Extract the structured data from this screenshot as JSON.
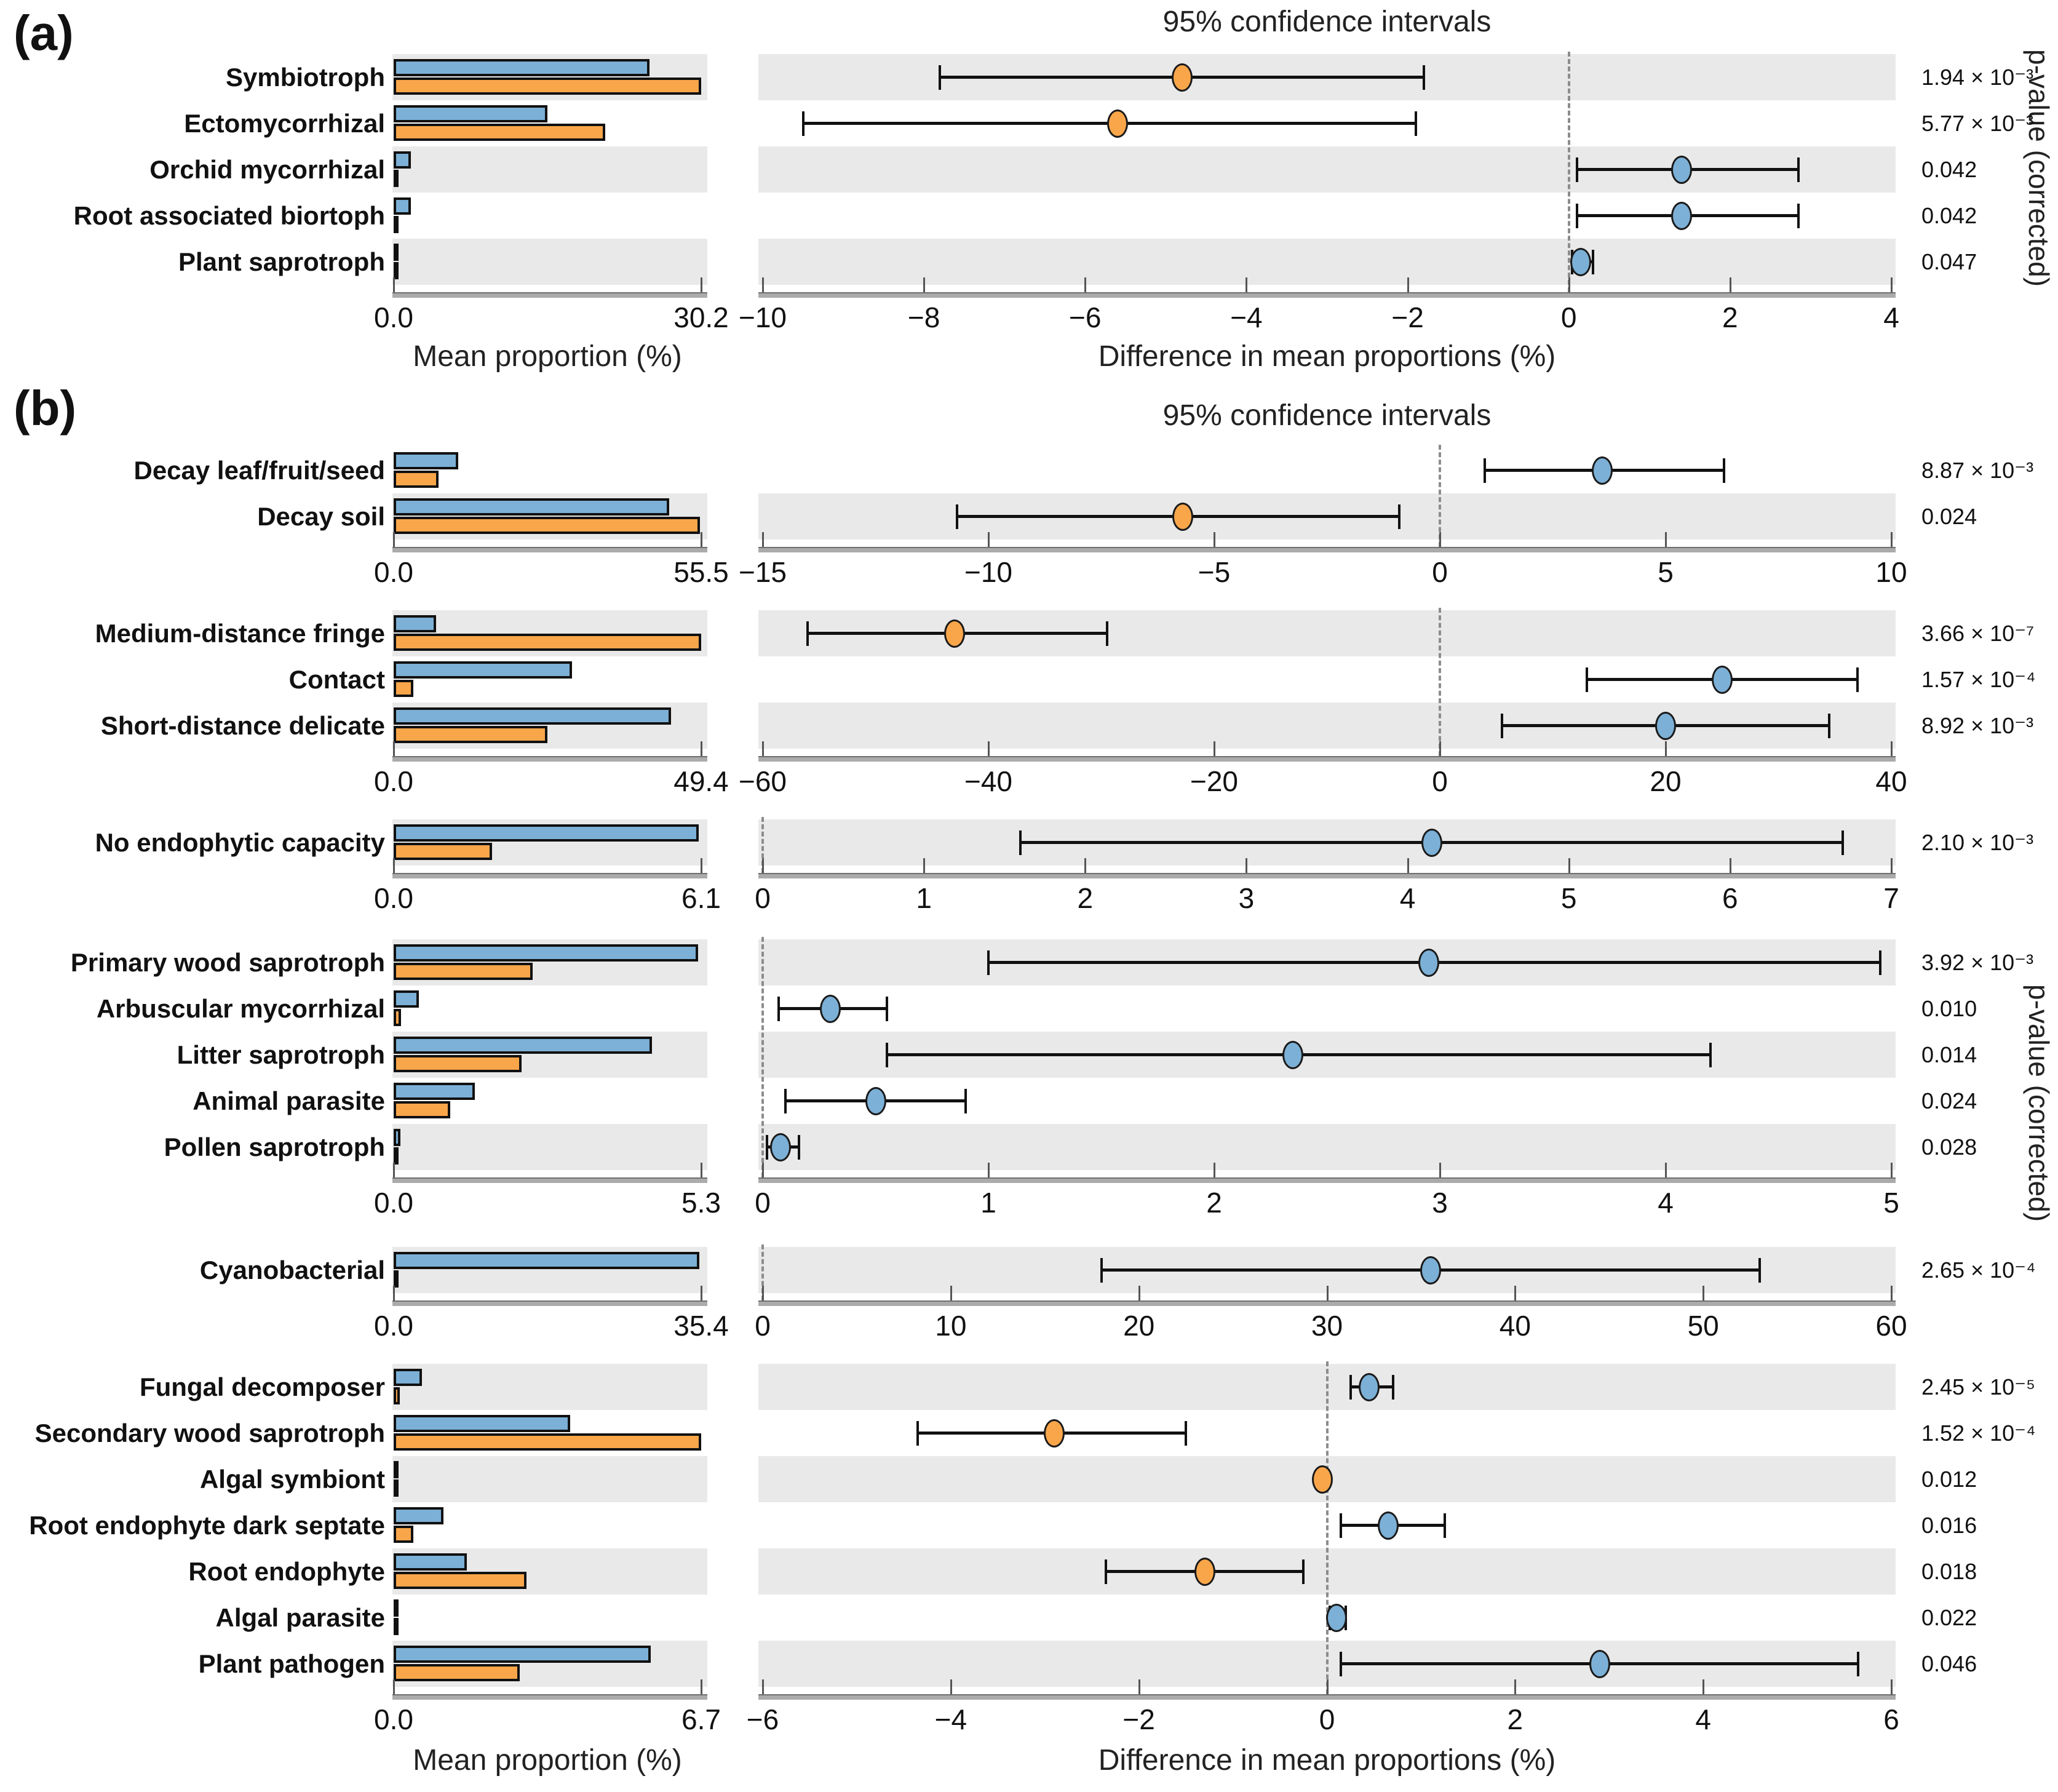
{
  "figure": {
    "panel_a_label": "(a)",
    "panel_b_label": "(b)",
    "ci_title": "95% confidence intervals",
    "mean_axis_title": "Mean proportion (%)",
    "diff_axis_title": "Difference in mean proportions (%)",
    "pvalue_axis_title": "p-value (corrected)"
  },
  "colors": {
    "blue": "#7cb0d6",
    "orange": "#f9a64b",
    "stripe": "#e9e9e9",
    "bar_border": "#111111",
    "axis_line": "#ababab",
    "tick": "#555555",
    "zero_line": "#8c8c8c",
    "text": "#111111"
  },
  "chart_data": [
    {
      "id": "a1",
      "panel": "a",
      "type": "extended-error-bar",
      "mean_axis": {
        "min": 0,
        "max": 30.2,
        "tick_labels": [
          "0.0",
          "30.2"
        ]
      },
      "diff_axis": {
        "min": -10,
        "max": 4,
        "ticks": [
          -10,
          -8,
          -6,
          -4,
          -2,
          0,
          2,
          4
        ],
        "tick_labels": [
          "−10",
          "−8",
          "−6",
          "−4",
          "−2",
          "0",
          "2",
          "4"
        ]
      },
      "rows": [
        {
          "label": "Symbiotroph",
          "mean_blue": 25.1,
          "mean_orange": 30.2,
          "diff_mean": -4.8,
          "ci_low": -7.8,
          "ci_high": -1.8,
          "dot_color": "orange",
          "p_value": "1.94 × 10⁻³",
          "striped": true
        },
        {
          "label": "Ectomycorrhizal",
          "mean_blue": 15.1,
          "mean_orange": 20.8,
          "diff_mean": -5.6,
          "ci_low": -9.5,
          "ci_high": -1.9,
          "dot_color": "orange",
          "p_value": "5.77 × 10⁻³",
          "striped": false
        },
        {
          "label": "Orchid mycorrhizal",
          "mean_blue": 1.7,
          "mean_orange": 0.35,
          "diff_mean": 1.4,
          "ci_low": 0.1,
          "ci_high": 2.85,
          "dot_color": "blue",
          "p_value": "0.042",
          "striped": true
        },
        {
          "label": "Root associated biortoph",
          "mean_blue": 1.7,
          "mean_orange": 0.35,
          "diff_mean": 1.4,
          "ci_low": 0.1,
          "ci_high": 2.85,
          "dot_color": "blue",
          "p_value": "0.042",
          "striped": false
        },
        {
          "label": "Plant saprotroph",
          "mean_blue": 0.2,
          "mean_orange": 0.1,
          "diff_mean": 0.15,
          "ci_low": 0.04,
          "ci_high": 0.3,
          "dot_color": "blue",
          "p_value": "0.047",
          "striped": true
        }
      ]
    },
    {
      "id": "b1",
      "panel": "b",
      "type": "extended-error-bar",
      "mean_axis": {
        "min": 0,
        "max": 55.5,
        "tick_labels": [
          "0.0",
          "55.5"
        ]
      },
      "diff_axis": {
        "min": -15,
        "max": 10,
        "ticks": [
          -15,
          -10,
          -5,
          0,
          5,
          10
        ],
        "tick_labels": [
          "−15",
          "−10",
          "−5",
          "0",
          "5",
          "10"
        ]
      },
      "rows": [
        {
          "label": "Decay leaf/fruit/seed",
          "mean_blue": 11.6,
          "mean_orange": 8.1,
          "diff_mean": 3.6,
          "ci_low": 1.0,
          "ci_high": 6.3,
          "dot_color": "blue",
          "p_value": "8.87 × 10⁻³",
          "striped": false
        },
        {
          "label": "Decay soil",
          "mean_blue": 49.7,
          "mean_orange": 55.3,
          "diff_mean": -5.7,
          "ci_low": -10.7,
          "ci_high": -0.9,
          "dot_color": "orange",
          "p_value": "0.024",
          "striped": true
        }
      ]
    },
    {
      "id": "b2",
      "panel": "b",
      "type": "extended-error-bar",
      "mean_axis": {
        "min": 0,
        "max": 49.4,
        "tick_labels": [
          "0.0",
          "49.4"
        ]
      },
      "diff_axis": {
        "min": -60,
        "max": 40,
        "ticks": [
          -60,
          -40,
          -20,
          0,
          20,
          40
        ],
        "tick_labels": [
          "−60",
          "−40",
          "−20",
          "0",
          "20",
          "40"
        ]
      },
      "rows": [
        {
          "label": "Medium-distance fringe",
          "mean_blue": 6.8,
          "mean_orange": 49.4,
          "diff_mean": -43,
          "ci_low": -56,
          "ci_high": -29.5,
          "dot_color": "orange",
          "p_value": "3.66 × 10⁻⁷",
          "striped": true
        },
        {
          "label": "Contact",
          "mean_blue": 28.7,
          "mean_orange": 3.2,
          "diff_mean": 25,
          "ci_low": 13,
          "ci_high": 37,
          "dot_color": "blue",
          "p_value": "1.57 × 10⁻⁴",
          "striped": false
        },
        {
          "label": "Short-distance delicate",
          "mean_blue": 44.6,
          "mean_orange": 24.7,
          "diff_mean": 20,
          "ci_low": 5.5,
          "ci_high": 34.5,
          "dot_color": "blue",
          "p_value": "8.92 × 10⁻³",
          "striped": true
        }
      ]
    },
    {
      "id": "b3",
      "panel": "b",
      "type": "extended-error-bar",
      "mean_axis": {
        "min": 0,
        "max": 6.1,
        "tick_labels": [
          "0.0",
          "6.1"
        ]
      },
      "diff_axis": {
        "min": 0,
        "max": 7,
        "ticks": [
          0,
          1,
          2,
          3,
          4,
          5,
          6,
          7
        ],
        "tick_labels": [
          "0",
          "1",
          "2",
          "3",
          "4",
          "5",
          "6",
          "7"
        ]
      },
      "rows": [
        {
          "label": "No endophytic capacity",
          "mean_blue": 6.05,
          "mean_orange": 1.95,
          "diff_mean": 4.15,
          "ci_low": 1.6,
          "ci_high": 6.7,
          "dot_color": "blue",
          "p_value": "2.10 × 10⁻³",
          "striped": true
        }
      ]
    },
    {
      "id": "b4",
      "panel": "b",
      "type": "extended-error-bar",
      "mean_axis": {
        "min": 0,
        "max": 5.3,
        "tick_labels": [
          "0.0",
          "5.3"
        ]
      },
      "diff_axis": {
        "min": 0,
        "max": 5,
        "ticks": [
          0,
          1,
          2,
          3,
          4,
          5
        ],
        "tick_labels": [
          "0",
          "1",
          "2",
          "3",
          "4",
          "5"
        ]
      },
      "rows": [
        {
          "label": "Primary wood saprotroph",
          "mean_blue": 5.25,
          "mean_orange": 2.4,
          "diff_mean": 2.95,
          "ci_low": 1.0,
          "ci_high": 4.95,
          "dot_color": "blue",
          "p_value": "3.92 × 10⁻³",
          "striped": true
        },
        {
          "label": "Arbuscular mycorrhizal",
          "mean_blue": 0.43,
          "mean_orange": 0.13,
          "diff_mean": 0.3,
          "ci_low": 0.07,
          "ci_high": 0.55,
          "dot_color": "blue",
          "p_value": "0.010",
          "striped": false
        },
        {
          "label": "Litter saprotroph",
          "mean_blue": 4.45,
          "mean_orange": 2.2,
          "diff_mean": 2.35,
          "ci_low": 0.55,
          "ci_high": 4.2,
          "dot_color": "blue",
          "p_value": "0.014",
          "striped": true
        },
        {
          "label": "Animal parasite",
          "mean_blue": 1.4,
          "mean_orange": 0.97,
          "diff_mean": 0.5,
          "ci_low": 0.1,
          "ci_high": 0.9,
          "dot_color": "blue",
          "p_value": "0.024",
          "striped": false
        },
        {
          "label": "Pollen saprotroph",
          "mean_blue": 0.12,
          "mean_orange": 0.04,
          "diff_mean": 0.08,
          "ci_low": 0.02,
          "ci_high": 0.16,
          "dot_color": "blue",
          "p_value": "0.028",
          "striped": true
        }
      ]
    },
    {
      "id": "b5",
      "panel": "b",
      "type": "extended-error-bar",
      "mean_axis": {
        "min": 0,
        "max": 35.4,
        "tick_labels": [
          "0.0",
          "35.4"
        ]
      },
      "diff_axis": {
        "min": 0,
        "max": 60,
        "ticks": [
          0,
          10,
          20,
          30,
          40,
          50,
          60
        ],
        "tick_labels": [
          "0",
          "10",
          "20",
          "30",
          "40",
          "50",
          "60"
        ]
      },
      "rows": [
        {
          "label": "Cyanobacterial",
          "mean_blue": 35.2,
          "mean_orange": 0.4,
          "diff_mean": 35.5,
          "ci_low": 18,
          "ci_high": 53,
          "dot_color": "blue",
          "p_value": "2.65 × 10⁻⁴",
          "striped": true
        }
      ]
    },
    {
      "id": "b6",
      "panel": "b",
      "type": "extended-error-bar",
      "mean_axis": {
        "min": 0,
        "max": 6.7,
        "tick_labels": [
          "0.0",
          "6.7"
        ]
      },
      "diff_axis": {
        "min": -6,
        "max": 6,
        "ticks": [
          -6,
          -4,
          -2,
          0,
          2,
          4,
          6
        ],
        "tick_labels": [
          "−6",
          "−4",
          "−2",
          "0",
          "2",
          "4",
          "6"
        ]
      },
      "rows": [
        {
          "label": "Fungal decomposer",
          "mean_blue": 0.62,
          "mean_orange": 0.13,
          "diff_mean": 0.45,
          "ci_low": 0.25,
          "ci_high": 0.7,
          "dot_color": "blue",
          "p_value": "2.45 × 10⁻⁵",
          "striped": true
        },
        {
          "label": "Secondary wood saprotroph",
          "mean_blue": 3.85,
          "mean_orange": 6.7,
          "diff_mean": -2.9,
          "ci_low": -4.35,
          "ci_high": -1.5,
          "dot_color": "orange",
          "p_value": "1.52 × 10⁻⁴",
          "striped": false
        },
        {
          "label": "Algal symbiont",
          "mean_blue": 0.04,
          "mean_orange": 0.06,
          "diff_mean": -0.05,
          "ci_low": -0.08,
          "ci_high": -0.02,
          "dot_color": "orange",
          "p_value": "0.012",
          "striped": true
        },
        {
          "label": "Root endophyte dark septate",
          "mean_blue": 1.08,
          "mean_orange": 0.43,
          "diff_mean": 0.65,
          "ci_low": 0.15,
          "ci_high": 1.25,
          "dot_color": "blue",
          "p_value": "0.016",
          "striped": false
        },
        {
          "label": "Root endophyte",
          "mean_blue": 1.6,
          "mean_orange": 2.9,
          "diff_mean": -1.3,
          "ci_low": -2.35,
          "ci_high": -0.25,
          "dot_color": "orange",
          "p_value": "0.018",
          "striped": true
        },
        {
          "label": "Algal parasite",
          "mean_blue": 0.11,
          "mean_orange": 0.03,
          "diff_mean": 0.1,
          "ci_low": 0.03,
          "ci_high": 0.2,
          "dot_color": "blue",
          "p_value": "0.022",
          "striped": false
        },
        {
          "label": "Plant pathogen",
          "mean_blue": 5.6,
          "mean_orange": 2.75,
          "diff_mean": 2.9,
          "ci_low": 0.15,
          "ci_high": 5.65,
          "dot_color": "blue",
          "p_value": "0.046",
          "striped": true
        }
      ]
    }
  ]
}
